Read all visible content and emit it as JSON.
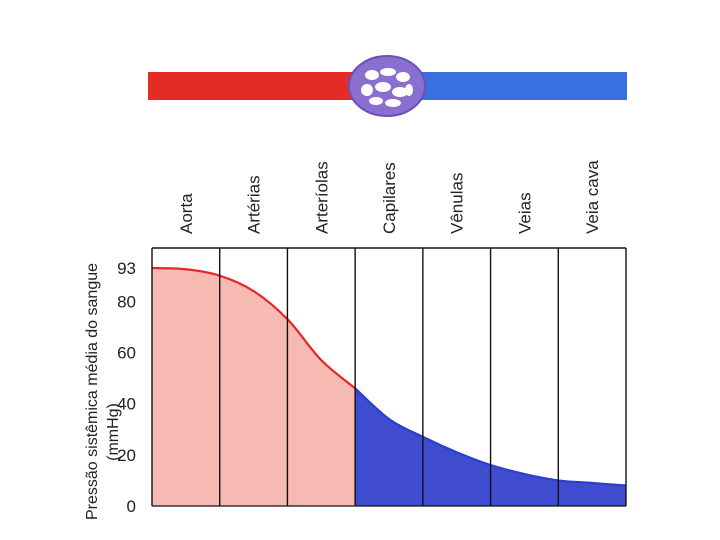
{
  "chart_data": {
    "type": "area",
    "title": "",
    "ylabel_line1": "Pressão sistêmica média do sangue",
    "ylabel_line2": "(mmHg)",
    "xlabel": "",
    "ylim": [
      0,
      100
    ],
    "y_ticks": [
      {
        "value": 0,
        "label": "0"
      },
      {
        "value": 20,
        "label": "20"
      },
      {
        "value": 40,
        "label": "40"
      },
      {
        "value": 60,
        "label": "60"
      },
      {
        "value": 80,
        "label": "80"
      },
      {
        "value": 93,
        "label": "93"
      }
    ],
    "categories": [
      "Aorta",
      "Artérias",
      "Arteríolas",
      "Capilares",
      "Vênulas",
      "Veias",
      "Veia cava"
    ],
    "series": [
      {
        "name": "arterial",
        "color": "#e8262a",
        "fill": "#f7bab2",
        "points": [
          [
            0,
            93
          ],
          [
            0.5,
            92.5
          ],
          [
            1.0,
            90
          ],
          [
            1.5,
            84
          ],
          [
            2.0,
            73
          ],
          [
            2.5,
            57
          ],
          [
            3.0,
            46
          ]
        ]
      },
      {
        "name": "venous",
        "color": "#2b3ed0",
        "fill": "#3f4ccf",
        "points": [
          [
            3.0,
            46
          ],
          [
            3.5,
            34
          ],
          [
            4.0,
            27
          ],
          [
            4.5,
            21
          ],
          [
            5.0,
            16
          ],
          [
            5.5,
            12.5
          ],
          [
            6.0,
            10
          ],
          [
            6.5,
            9
          ],
          [
            7.0,
            8
          ]
        ]
      }
    ],
    "top_diagram": {
      "artery_color": "#e52b25",
      "vein_color": "#3a6fe0",
      "capillary_color": "#8a6fd0"
    }
  }
}
